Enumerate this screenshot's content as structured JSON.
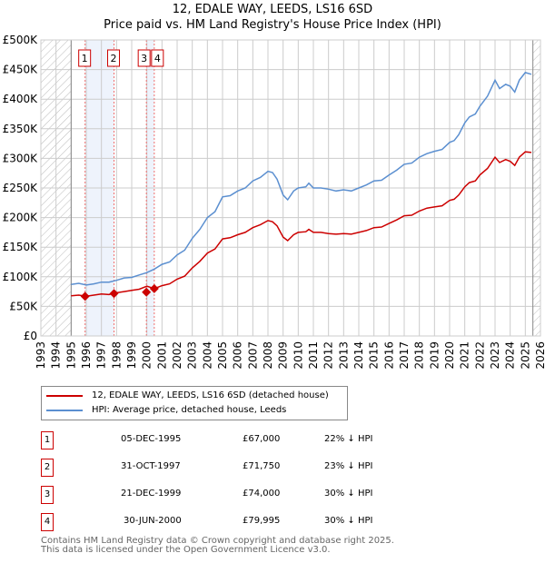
{
  "title_line1": "12, EDALE WAY, LEEDS, LS16 6SD",
  "title_line2": "Price paid vs. HM Land Registry's House Price Index (HPI)",
  "chart_data": {
    "type": "line",
    "xlim": [
      1993,
      2026
    ],
    "ylim": [
      0,
      500000
    ],
    "yticks": [
      0,
      50000,
      100000,
      150000,
      200000,
      250000,
      300000,
      350000,
      400000,
      450000,
      500000
    ],
    "ytick_labels": [
      "£0",
      "£50K",
      "£100K",
      "£150K",
      "£200K",
      "£250K",
      "£300K",
      "£350K",
      "£400K",
      "£450K",
      "£500K"
    ],
    "xticks": [
      1993,
      1994,
      1995,
      1996,
      1997,
      1998,
      1999,
      2000,
      2001,
      2002,
      2003,
      2004,
      2005,
      2006,
      2007,
      2008,
      2009,
      2010,
      2011,
      2012,
      2013,
      2014,
      2015,
      2016,
      2017,
      2018,
      2019,
      2020,
      2021,
      2022,
      2023,
      2024,
      2025,
      2026
    ],
    "grid": true,
    "data_range": [
      1995,
      2025.5
    ],
    "series": [
      {
        "name": "HPI: Average price, detached house, Leeds",
        "color": "#5b8fd0",
        "x": [
          1995,
          1995.5,
          1996,
          1996.5,
          1997,
          1997.5,
          1998,
          1998.5,
          1999,
          1999.5,
          2000,
          2000.5,
          2001,
          2001.5,
          2002,
          2002.5,
          2003,
          2003.5,
          2004,
          2004.5,
          2005,
          2005.5,
          2006,
          2006.5,
          2007,
          2007.5,
          2008,
          2008.3,
          2008.6,
          2009,
          2009.3,
          2009.7,
          2010,
          2010.5,
          2010.7,
          2011,
          2011.5,
          2012,
          2012.5,
          2013,
          2013.5,
          2014,
          2014.5,
          2015,
          2015.5,
          2016,
          2016.5,
          2017,
          2017.5,
          2018,
          2018.5,
          2019,
          2019.5,
          2020,
          2020.3,
          2020.6,
          2021,
          2021.3,
          2021.7,
          2022,
          2022.5,
          2023,
          2023.3,
          2023.7,
          2024,
          2024.3,
          2024.6,
          2025,
          2025.4
        ],
        "y": [
          87000,
          89000,
          86000,
          88000,
          91000,
          91000,
          94000,
          98000,
          99000,
          103000,
          107000,
          113000,
          121000,
          125000,
          137000,
          145000,
          165000,
          180000,
          200000,
          210000,
          235000,
          237000,
          245000,
          250000,
          262000,
          268000,
          278000,
          276000,
          265000,
          238000,
          230000,
          245000,
          250000,
          252000,
          258000,
          250000,
          250000,
          248000,
          245000,
          247000,
          245000,
          250000,
          255000,
          262000,
          263000,
          272000,
          280000,
          290000,
          292000,
          302000,
          308000,
          312000,
          315000,
          327000,
          330000,
          340000,
          360000,
          370000,
          375000,
          388000,
          405000,
          432000,
          418000,
          425000,
          422000,
          412000,
          432000,
          445000,
          442000
        ]
      },
      {
        "name": "12, EDALE WAY, LEEDS, LS16 6SD (detached house)",
        "color": "#cc0000",
        "x": [
          1995,
          1995.5,
          1996,
          1996.5,
          1997,
          1997.5,
          1998,
          1998.5,
          1999,
          1999.5,
          2000,
          2000.5,
          2001,
          2001.5,
          2002,
          2002.5,
          2003,
          2003.5,
          2004,
          2004.5,
          2005,
          2005.5,
          2006,
          2006.5,
          2007,
          2007.5,
          2008,
          2008.3,
          2008.6,
          2009,
          2009.3,
          2009.7,
          2010,
          2010.5,
          2010.7,
          2011,
          2011.5,
          2012,
          2012.5,
          2013,
          2013.5,
          2014,
          2014.5,
          2015,
          2015.5,
          2016,
          2016.5,
          2017,
          2017.5,
          2018,
          2018.5,
          2019,
          2019.5,
          2020,
          2020.3,
          2020.6,
          2021,
          2021.3,
          2021.7,
          2022,
          2022.5,
          2023,
          2023.3,
          2023.7,
          2024,
          2024.3,
          2024.6,
          2025,
          2025.4
        ],
        "y": [
          68000,
          69000,
          67000,
          69000,
          71000,
          70000,
          73000,
          75000,
          77000,
          79000,
          84000,
          80000,
          85000,
          88000,
          96000,
          101000,
          115000,
          126000,
          140000,
          147000,
          164000,
          166000,
          171000,
          175000,
          183000,
          188000,
          195000,
          193000,
          186000,
          167000,
          161000,
          171000,
          175000,
          176000,
          180000,
          175000,
          175000,
          173000,
          172000,
          173000,
          172000,
          175000,
          178000,
          183000,
          184000,
          190000,
          196000,
          203000,
          204000,
          211000,
          216000,
          218000,
          220000,
          229000,
          231000,
          238000,
          252000,
          259000,
          262000,
          272000,
          283000,
          302000,
          293000,
          298000,
          295000,
          288000,
          302000,
          311000,
          310000
        ]
      }
    ],
    "sales": [
      {
        "label": "1",
        "x": 1995.92,
        "date": "05-DEC-1995",
        "price": 67000,
        "price_label": "£67,000",
        "hpi_diff": "22% ↓ HPI"
      },
      {
        "label": "2",
        "x": 1997.83,
        "date": "31-OCT-1997",
        "price": 71750,
        "price_label": "£71,750",
        "hpi_diff": "23% ↓ HPI"
      },
      {
        "label": "3",
        "x": 1999.97,
        "date": "21-DEC-1999",
        "price": 74000,
        "price_label": "£74,000",
        "hpi_diff": "30% ↓ HPI"
      },
      {
        "label": "4",
        "x": 2000.49,
        "date": "30-JUN-2000",
        "price": 79995,
        "price_label": "£79,995",
        "hpi_diff": "30% ↓ HPI"
      }
    ],
    "legend": {
      "position": "below",
      "entries": [
        "12, EDALE WAY, LEEDS, LS16 6SD (detached house)",
        "HPI: Average price, detached house, Leeds"
      ]
    }
  },
  "footer_line1": "Contains HM Land Registry data © Crown copyright and database right 2025.",
  "footer_line2": "This data is licensed under the Open Government Licence v3.0."
}
